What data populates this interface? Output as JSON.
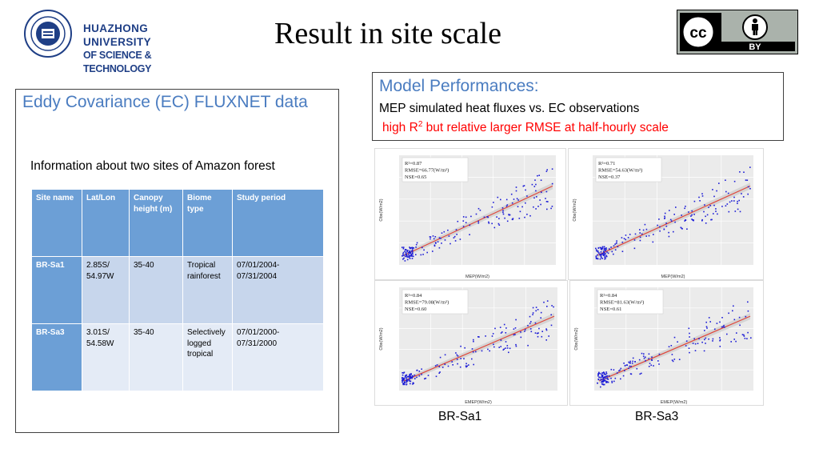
{
  "header": {
    "university_line1": "HUAZHONG UNIVERSITY",
    "university_line2": "OF SCIENCE & TECHNOLOGY",
    "title": "Result in site scale",
    "license_badge": "BY",
    "license_icons": [
      "cc-icon",
      "person-icon"
    ]
  },
  "left_panel": {
    "heading": "Eddy Covariance (EC) FLUXNET data",
    "subtitle": "Information about two sites of Amazon forest",
    "table": {
      "headers": [
        "Site name",
        "Lat/Lon",
        "Canopy height (m)",
        "Biome type",
        "Study period"
      ],
      "rows": [
        [
          "BR-Sa1",
          "2.85S/ 54.97W",
          "35-40",
          "Tropical rainforest",
          "07/01/2004- 07/31/2004"
        ],
        [
          "BR-Sa3",
          "3.01S/ 54.58W",
          "35-40",
          "Selectively logged tropical",
          "07/01/2000- 07/31/2000"
        ]
      ]
    }
  },
  "model_box": {
    "title": "Model Performances:",
    "line2": "MEP simulated heat fluxes vs. EC observations",
    "line3_prefix": "high R",
    "line3_sup": "2",
    "line3_suffix": " but relative larger RMSE at half-hourly scale"
  },
  "plots": [
    {
      "r2": "R²=0.87",
      "rmse": "RMSE=66.77(W/m²)",
      "nse": "NSE=0.65",
      "xlabel": "MEP(W/m2)",
      "ylabel": "Obs(W/m2)"
    },
    {
      "r2": "R²=0.71",
      "rmse": "RMSE=54.63(W/m²)",
      "nse": "NSE=0.37",
      "xlabel": "MEP(W/m2)",
      "ylabel": "Obs(W/m2)"
    },
    {
      "r2": "R²=0.84",
      "rmse": "RMSE=79.08(W/m²)",
      "nse": "NSE=0.60",
      "xlabel": "EMEP(W/m2)",
      "ylabel": "Obs(W/m2)"
    },
    {
      "r2": "R²=0.84",
      "rmse": "RMSE=81.63(W/m²)",
      "nse": "NSE=0.61",
      "xlabel": "EMEP(W/m2)",
      "ylabel": "Obs(W/m2)"
    }
  ],
  "site_labels": [
    "BR-Sa1",
    "BR-Sa3"
  ],
  "colors": {
    "accent_blue": "#4a7cc0",
    "table_header": "#6c9fd6",
    "highlight_red": "#ff0000",
    "scatter": "#1c1cd6",
    "fit_line": "#e0483c"
  }
}
